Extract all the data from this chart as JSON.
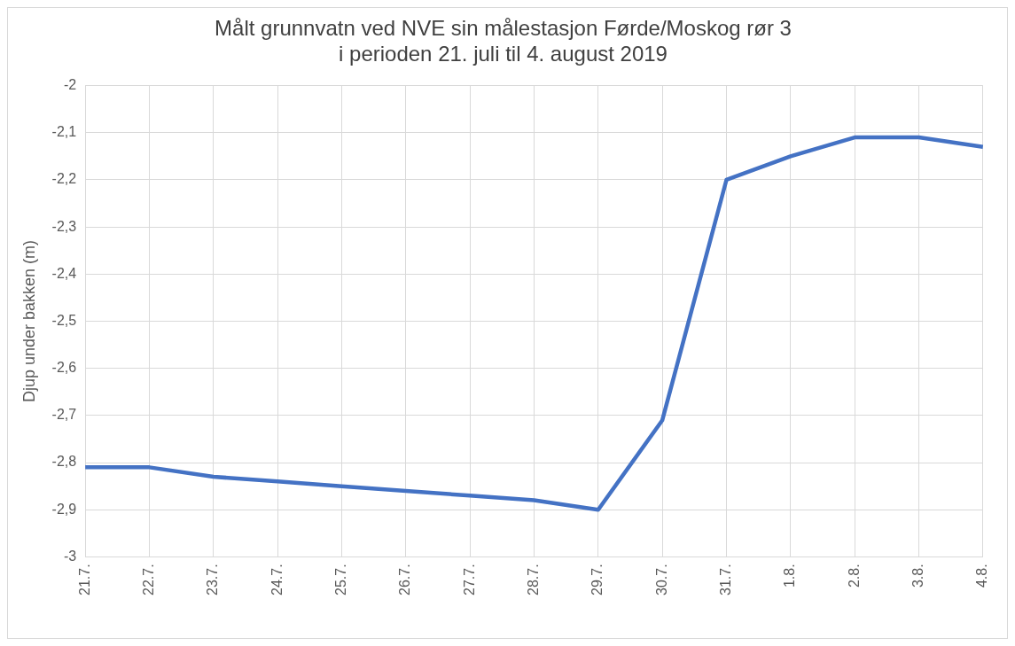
{
  "chart_data": {
    "type": "line",
    "title": "Målt grunnvatn ved NVE sin målestasjon Førde/Moskog rør 3\ni perioden 21. juli til 4. august 2019",
    "ylabel": "Djup under bakken (m)",
    "categories": [
      "21.7.",
      "22.7.",
      "23.7.",
      "24.7.",
      "25.7.",
      "26.7.",
      "27.7.",
      "28.7.",
      "29.7.",
      "30.7.",
      "31.7.",
      "1.8.",
      "2.8.",
      "3.8.",
      "4.8."
    ],
    "series": [
      {
        "color": "#4472c4",
        "values": [
          -2.81,
          -2.81,
          -2.83,
          -2.84,
          -2.85,
          -2.86,
          -2.87,
          -2.88,
          -2.9,
          -2.71,
          -2.2,
          -2.15,
          -2.11,
          -2.11,
          -2.13
        ]
      }
    ],
    "ylim": [
      -3,
      -2
    ],
    "yticks": [
      {
        "value": -3,
        "label": "-3"
      },
      {
        "value": -2.9,
        "label": "-2,9"
      },
      {
        "value": -2.8,
        "label": "-2,8"
      },
      {
        "value": -2.7,
        "label": "-2,7"
      },
      {
        "value": -2.6,
        "label": "-2,6"
      },
      {
        "value": -2.5,
        "label": "-2,5"
      },
      {
        "value": -2.4,
        "label": "-2,4"
      },
      {
        "value": -2.3,
        "label": "-2,3"
      },
      {
        "value": -2.2,
        "label": "-2,2"
      },
      {
        "value": -2.1,
        "label": "-2,1"
      },
      {
        "value": -2,
        "label": "-2"
      }
    ],
    "grid": true,
    "legend": false,
    "marker": "none",
    "line_style": "solid"
  }
}
